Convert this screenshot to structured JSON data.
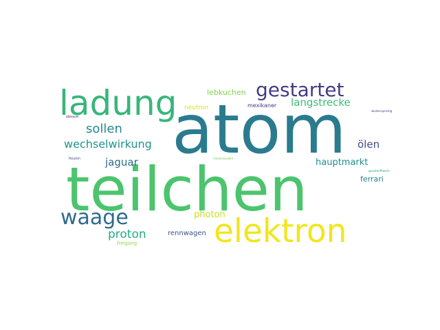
{
  "words": [
    {
      "text": "atom",
      "color": "#2b7b8e"
    },
    {
      "text": "teilchen",
      "color": "#4cc46e"
    },
    {
      "text": "elektron",
      "color": "#f2e51d"
    },
    {
      "text": "ladung",
      "color": "#37b67a"
    },
    {
      "text": "gestartet",
      "color": "#433d84"
    },
    {
      "text": "waage",
      "color": "#2e6a8e"
    },
    {
      "text": "sollen",
      "color": "#24888d"
    },
    {
      "text": "wechselwirkung",
      "color": "#1f958b"
    },
    {
      "text": "langstrecke",
      "color": "#3cbc74"
    },
    {
      "text": "proton",
      "color": "#25ab82"
    },
    {
      "text": "jaguar",
      "color": "#2e6b8e"
    },
    {
      "text": "hauptmarkt",
      "color": "#21908c"
    },
    {
      "text": "ölen",
      "color": "#3f4a8a"
    },
    {
      "text": "photon",
      "color": "#c6e020"
    },
    {
      "text": "lebkuchen",
      "color": "#7fd34e"
    },
    {
      "text": "ferrari",
      "color": "#27808e"
    },
    {
      "text": "rennwagen",
      "color": "#3a548c"
    },
    {
      "text": "neutron",
      "color": "#d8e219"
    },
    {
      "text": "mexikaner",
      "color": "#453581"
    },
    {
      "text": "freigang",
      "color": "#8ed645"
    },
    {
      "text": "feuzon",
      "color": "#404387"
    },
    {
      "text": "molekuhsaden",
      "color": "#6ccd5a"
    },
    {
      "text": "ablaiaum",
      "color": "#2a0a55"
    },
    {
      "text": "wiederspenstig",
      "color": "#443b84"
    },
    {
      "text": "quantenfheorie",
      "color": "#1f9e89"
    }
  ]
}
